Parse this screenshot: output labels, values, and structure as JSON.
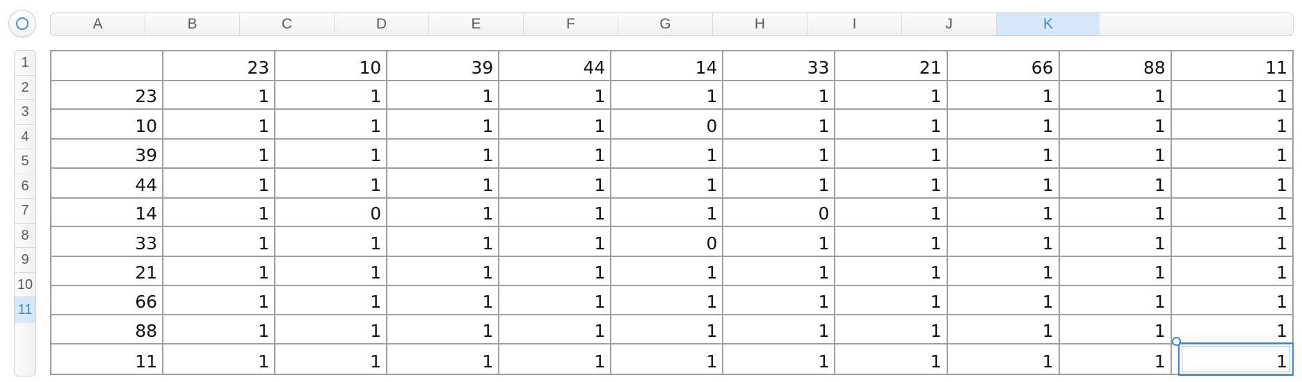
{
  "sheet": {
    "corner_icon": "select-all-circle-icon",
    "accent_color": "#3a86d8",
    "selected_column": "K",
    "selected_row": "11",
    "columns": [
      "A",
      "B",
      "C",
      "D",
      "E",
      "F",
      "G",
      "H",
      "I",
      "J",
      "K"
    ],
    "rows": [
      "1",
      "2",
      "3",
      "4",
      "5",
      "6",
      "7",
      "8",
      "9",
      "10",
      "11"
    ],
    "cells": [
      [
        "",
        "23",
        "10",
        "39",
        "44",
        "14",
        "33",
        "21",
        "66",
        "88",
        "11"
      ],
      [
        "23",
        "1",
        "1",
        "1",
        "1",
        "1",
        "1",
        "1",
        "1",
        "1",
        "1"
      ],
      [
        "10",
        "1",
        "1",
        "1",
        "1",
        "0",
        "1",
        "1",
        "1",
        "1",
        "1"
      ],
      [
        "39",
        "1",
        "1",
        "1",
        "1",
        "1",
        "1",
        "1",
        "1",
        "1",
        "1"
      ],
      [
        "44",
        "1",
        "1",
        "1",
        "1",
        "1",
        "1",
        "1",
        "1",
        "1",
        "1"
      ],
      [
        "14",
        "1",
        "0",
        "1",
        "1",
        "1",
        "0",
        "1",
        "1",
        "1",
        "1"
      ],
      [
        "33",
        "1",
        "1",
        "1",
        "1",
        "0",
        "1",
        "1",
        "1",
        "1",
        "1"
      ],
      [
        "21",
        "1",
        "1",
        "1",
        "1",
        "1",
        "1",
        "1",
        "1",
        "1",
        "1"
      ],
      [
        "66",
        "1",
        "1",
        "1",
        "1",
        "1",
        "1",
        "1",
        "1",
        "1",
        "1"
      ],
      [
        "88",
        "1",
        "1",
        "1",
        "1",
        "1",
        "1",
        "1",
        "1",
        "1",
        "1"
      ],
      [
        "11",
        "1",
        "1",
        "1",
        "1",
        "1",
        "1",
        "1",
        "1",
        "1",
        "1"
      ]
    ]
  }
}
